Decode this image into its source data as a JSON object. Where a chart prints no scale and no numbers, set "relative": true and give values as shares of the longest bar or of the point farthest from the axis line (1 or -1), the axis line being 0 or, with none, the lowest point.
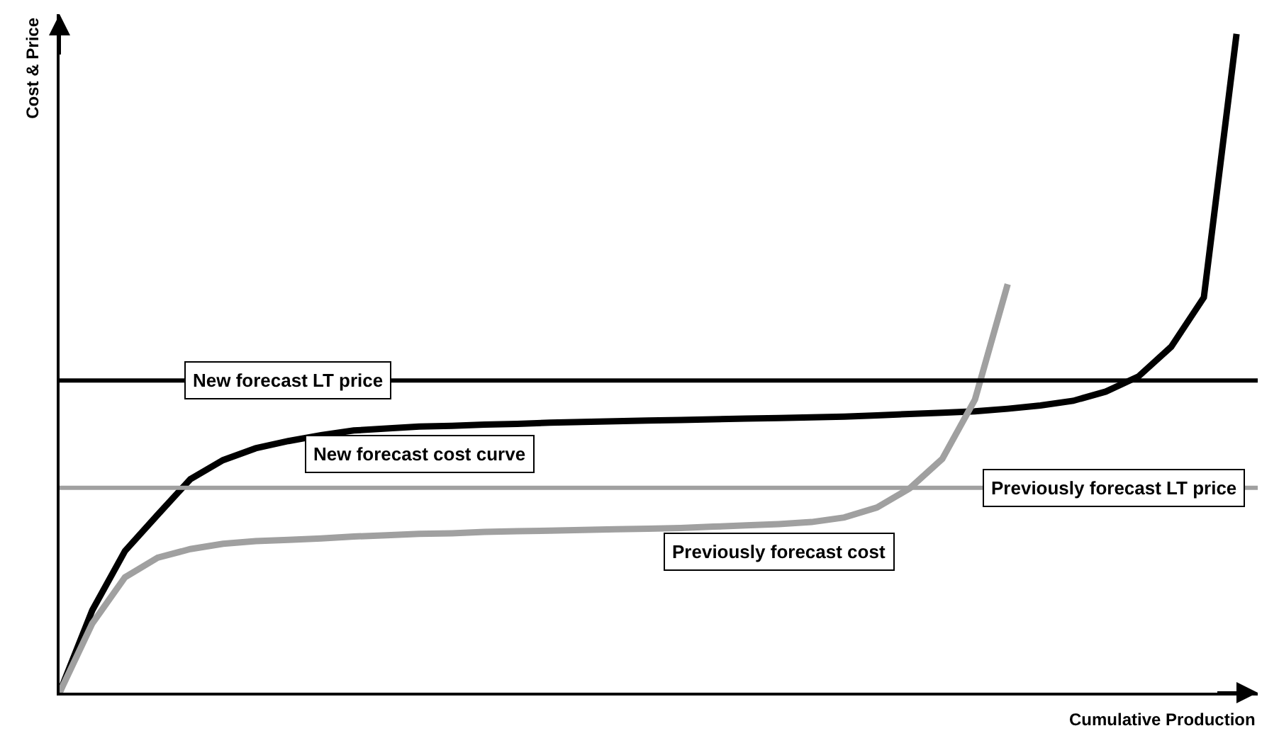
{
  "chart_data": {
    "type": "line",
    "relative": true,
    "xlabel": "Cumulative Production",
    "ylabel": "Cost & Price",
    "legend": false,
    "line_style": "solid",
    "marker": "none",
    "categories": [
      null,
      null,
      null,
      null,
      null,
      null,
      null,
      null,
      null,
      null,
      null,
      null,
      null,
      null,
      null,
      null,
      null,
      null,
      null,
      null,
      null,
      null,
      null,
      null,
      null,
      null,
      null,
      null,
      null,
      null,
      null,
      null,
      null,
      null,
      null,
      null,
      null
    ],
    "series": [
      {
        "name": "New forecast cost curve",
        "color": "#000000",
        "values": [
          0,
          0.125,
          0.215,
          0.27,
          0.324,
          0.353,
          0.371,
          0.382,
          0.391,
          0.398,
          0.401,
          0.404,
          0.405,
          0.407,
          0.408,
          0.41,
          0.411,
          0.412,
          0.413,
          0.414,
          0.415,
          0.416,
          0.417,
          0.418,
          0.419,
          0.421,
          0.423,
          0.425,
          0.427,
          0.431,
          0.436,
          0.443,
          0.457,
          0.48,
          0.525,
          0.6,
          1
        ]
      },
      {
        "name": "Previously forecast cost",
        "color": "#a0a0a0",
        "values": [
          0,
          0.105,
          0.175,
          0.205,
          0.218,
          0.226,
          0.23,
          0.232,
          0.234,
          0.237,
          0.239,
          0.241,
          0.242,
          0.244,
          0.245,
          0.246,
          0.247,
          0.248,
          0.249,
          0.25,
          0.252,
          0.254,
          0.256,
          0.259,
          0.266,
          0.281,
          0.31,
          0.355,
          0.445,
          0.62,
          null,
          null,
          null,
          null,
          null,
          null,
          null
        ]
      }
    ],
    "ref_lines": [
      {
        "axis": "y",
        "value": 0.474,
        "label": "New forecast LT price",
        "color": "#000000"
      },
      {
        "axis": "y",
        "value": 0.311,
        "label": "Previously forecast LT price",
        "color": "#a0a0a0"
      }
    ]
  }
}
